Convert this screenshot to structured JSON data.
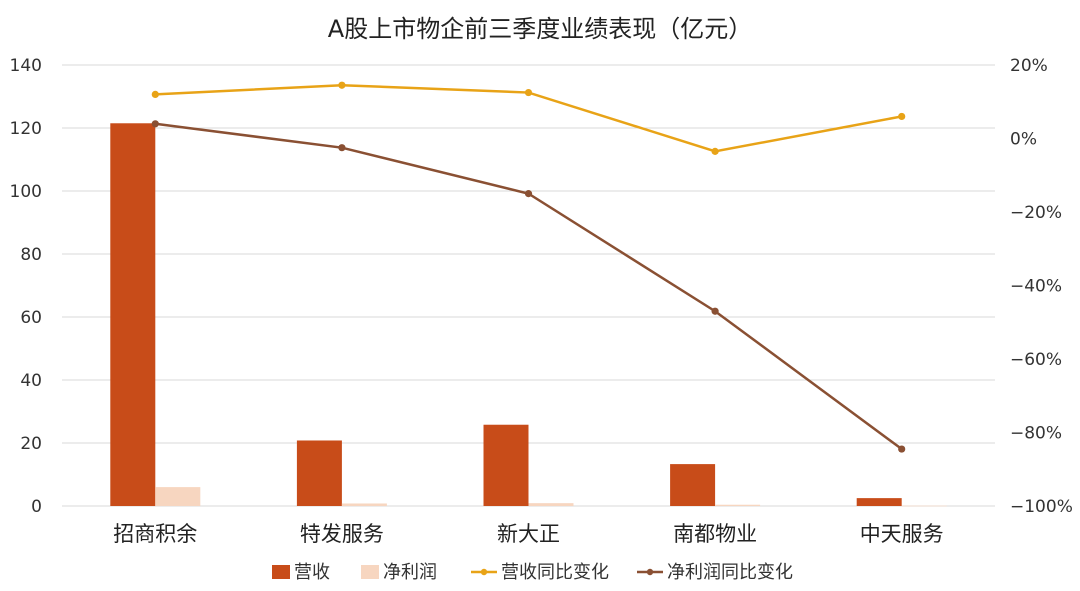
{
  "chart_data": {
    "type": "bar+line",
    "title": "A股上市物企前三季度业绩表现（亿元）",
    "categories": [
      "招商积余",
      "特发服务",
      "新大正",
      "南都物业",
      "中天服务"
    ],
    "series": [
      {
        "name": "营收",
        "type": "bar",
        "axis": "left",
        "color": "#c84c19",
        "values": [
          121.5,
          20.8,
          25.8,
          13.3,
          2.5
        ]
      },
      {
        "name": "净利润",
        "type": "bar",
        "axis": "left",
        "color": "#f7d6c0",
        "values": [
          6.0,
          0.8,
          0.9,
          0.4,
          0.1
        ]
      },
      {
        "name": "营收同比变化",
        "type": "line",
        "axis": "right",
        "color": "#e8a317",
        "values": [
          12,
          14.5,
          12.5,
          -3.5,
          6
        ]
      },
      {
        "name": "净利润同比变化",
        "type": "line",
        "axis": "right",
        "color": "#8a5033",
        "values": [
          4,
          -2.5,
          -15,
          -47,
          -84.5
        ]
      }
    ],
    "y_left": {
      "min": 0,
      "max": 140,
      "ticks": [
        "0",
        "20",
        "40",
        "60",
        "80",
        "100",
        "120",
        "140"
      ]
    },
    "y_right": {
      "min": -100,
      "max": 20,
      "ticks": [
        "−100%",
        "−80%",
        "−60%",
        "−40%",
        "−20%",
        "0%",
        "20%"
      ]
    },
    "grid": true,
    "legend_position": "bottom"
  }
}
